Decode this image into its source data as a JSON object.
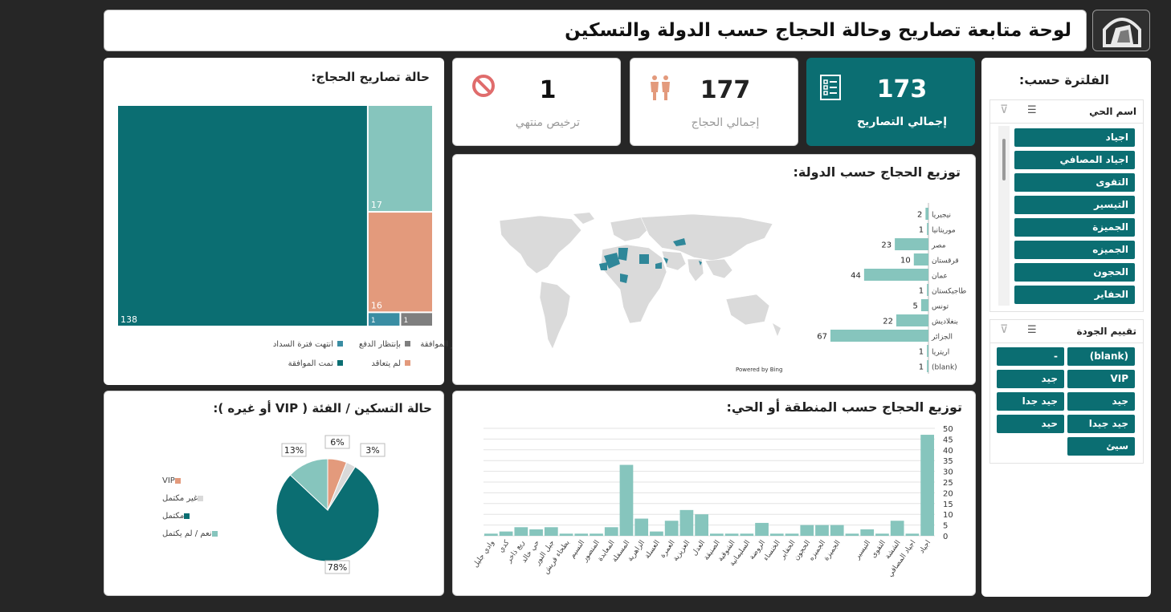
{
  "header": {
    "title": "لوحة متابعة تصاريح وحالة الحجاج حسب الدولة والتسكين"
  },
  "kpis": {
    "permits": {
      "value": "173",
      "label": "إجمالي التصاريح"
    },
    "pilgrims": {
      "value": "177",
      "label": "إجمالي الحجاج"
    },
    "expired": {
      "value": "1",
      "label": "ترخيص منتهي"
    }
  },
  "filters": {
    "title": "الفلترة حسب:",
    "district": {
      "title": "اسم الحي",
      "items": [
        "اجياد",
        "اجياد المصافي",
        "التقوى",
        "التيسير",
        "الجميزة",
        "الجميزه",
        "الحجون",
        "الحفاير"
      ]
    },
    "quality": {
      "title": "تقييم الجودة",
      "items": [
        "(blank)",
        "-",
        "VIP",
        "جيد",
        "جيد",
        "جيد جدا",
        "جيد جيدا",
        "حيد",
        "سيئ"
      ]
    }
  },
  "treemap": {
    "title": "حالة تصاريح الحجاج:",
    "legend": [
      "انتهت فترة السداد",
      "بإنتظار الدفع",
      "بإنتظار الموافقة",
      "تمت الموافقة",
      "لم يتعاقد"
    ],
    "colors": [
      "#3a8da3",
      "#7f7f7f",
      "#86c5bd",
      "#0b6e72",
      "#e39a7c"
    ]
  },
  "map_panel": {
    "title": "توزيع الحجاج حسب الدولة:",
    "credit": "Powered by Bing"
  },
  "pie_panel": {
    "title": "حالة التسكين / الفئة ( VIP أو غيره ):",
    "colors": [
      "#e39a7c",
      "#d9d9d9",
      "#0b6e72",
      "#86c5bd"
    ]
  },
  "column_panel": {
    "title": "توزيع الحجاج حسب المنطقة أو الحي:"
  },
  "chart_data": [
    {
      "type": "treemap",
      "title": "حالة تصاريح الحجاج:",
      "categories": [
        "تمت الموافقة",
        "بإنتظار الموافقة",
        "لم يتعاقد",
        "انتهت فترة السداد",
        "بإنتظار الدفع"
      ],
      "values": [
        138,
        17,
        16,
        1,
        1
      ]
    },
    {
      "type": "bar",
      "title": "توزيع الحجاج حسب الدولة:",
      "categories": [
        "نيجيريا",
        "موريتانيا",
        "مصر",
        "قرقستان",
        "عمان",
        "طاجيكستان",
        "تونس",
        "بنغلاديش",
        "الجزائر",
        "اريتريا",
        "(blank)"
      ],
      "values": [
        2,
        1,
        23,
        10,
        44,
        1,
        5,
        22,
        67,
        1,
        1
      ]
    },
    {
      "type": "pie",
      "title": "حالة التسكين / الفئة ( VIP أو غيره ):",
      "categories": [
        "VIP",
        "غير مكتمل",
        "مكتمل",
        "نعم / لم يكتمل"
      ],
      "values": [
        6,
        3,
        78,
        13
      ],
      "labels": [
        "6%",
        "3%",
        "78%",
        "13%"
      ]
    },
    {
      "type": "bar",
      "title": "توزيع الحجاج حسب المنطقة أو الحي:",
      "categories": [
        "اجياد",
        "اجياد المصافي",
        "الششة",
        "التقوى",
        "التيسير",
        "",
        "الجميزة",
        "الجميزه",
        "الحجون",
        "الحفاير",
        "الخنساء",
        "الروضة",
        "السليمانية",
        "الشوقية",
        "الصنيقة",
        "العدل",
        "العزيزية",
        "العمرة",
        "العسلة",
        "الزاهرية",
        "المسفلة",
        "المعابدة",
        "المنصور",
        "النسيم",
        "بطحاء قريش",
        "جبل النور",
        "حي خالد",
        "ريع ذاخر",
        "كدي",
        "وادي جليل"
      ],
      "values": [
        47,
        1,
        7,
        1,
        3,
        1,
        5,
        5,
        5,
        1,
        1,
        6,
        1,
        1,
        1,
        10,
        12,
        7,
        2,
        8,
        33,
        4,
        1,
        1,
        1,
        4,
        3,
        4,
        2,
        1
      ],
      "ylim": [
        0,
        50
      ],
      "yticks": [
        0,
        5,
        10,
        15,
        20,
        25,
        30,
        35,
        40,
        45,
        50
      ]
    }
  ]
}
